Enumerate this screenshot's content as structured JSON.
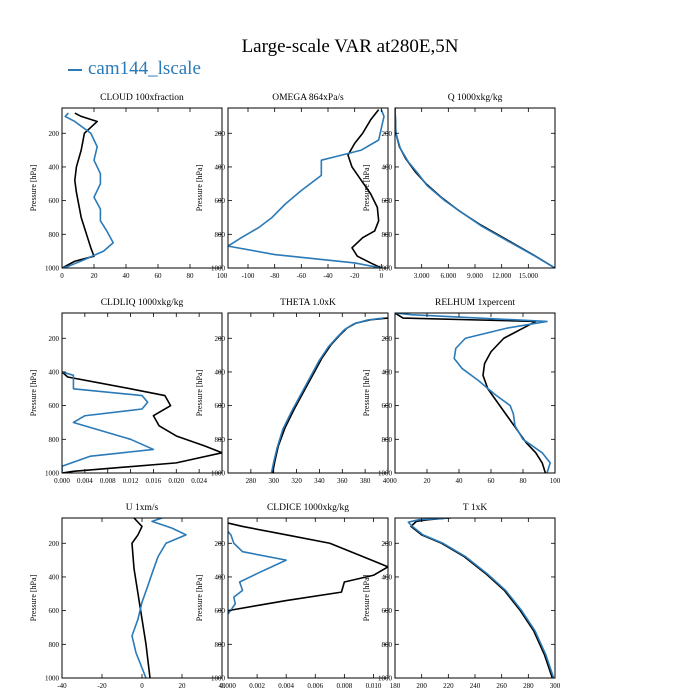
{
  "figure": {
    "title": "Large-scale VAR at280E,5N",
    "legend_label": "cam144_lscale",
    "series_colors": {
      "reference": "#000000",
      "model": "#2a7ab8"
    }
  },
  "chart_data": [
    {
      "type": "line",
      "title": "CLOUD  100xfraction",
      "ylabel": "Pressure [hPa]",
      "xlim": [
        0,
        100
      ],
      "ylim": [
        1000,
        50
      ],
      "xticks": [
        0,
        20,
        40,
        60,
        80,
        100
      ],
      "xtick_labels": [
        "0",
        "20",
        "40",
        "60",
        "80",
        "100"
      ],
      "yticks": [
        200,
        400,
        600,
        800,
        1000
      ],
      "ytick_labels": [
        "200",
        "400",
        "600",
        "800",
        "1000"
      ],
      "series": [
        {
          "name": "reference",
          "color": "#000000",
          "x": [
            8,
            12,
            22,
            14,
            12,
            9,
            8,
            9,
            11,
            12,
            14,
            16,
            18,
            20,
            8,
            2,
            0
          ],
          "y": [
            80,
            100,
            130,
            200,
            300,
            400,
            480,
            550,
            650,
            700,
            760,
            820,
            880,
            930,
            960,
            990,
            1000
          ]
        },
        {
          "name": "model",
          "color": "#2a7ab8",
          "x": [
            4,
            2,
            8,
            18,
            22,
            20,
            24,
            24,
            20,
            24,
            24,
            28,
            32,
            26,
            14,
            4,
            0
          ],
          "y": [
            80,
            100,
            130,
            200,
            280,
            360,
            440,
            500,
            580,
            650,
            720,
            780,
            850,
            900,
            950,
            990,
            1000
          ]
        }
      ]
    },
    {
      "type": "line",
      "title": "OMEGA  864xPa/s",
      "ylabel": "Pressure [hPa]",
      "xlim": [
        -115,
        5
      ],
      "ylim": [
        1000,
        50
      ],
      "xticks": [
        -100,
        -80,
        -60,
        -40,
        -20,
        0
      ],
      "xtick_labels": [
        "-100",
        "-80",
        "-60",
        "-40",
        "-20",
        "0"
      ],
      "yticks": [
        200,
        400,
        600,
        800,
        1000
      ],
      "ytick_labels": [
        "200",
        "400",
        "600",
        "800",
        "1000"
      ],
      "series": [
        {
          "name": "reference",
          "color": "#000000",
          "x": [
            -2,
            -8,
            -14,
            -20,
            -25,
            -22,
            -15,
            -8,
            -3,
            -2,
            -5,
            -14,
            -22,
            -18,
            -8,
            0
          ],
          "y": [
            60,
            120,
            200,
            260,
            330,
            400,
            480,
            560,
            640,
            720,
            780,
            820,
            880,
            930,
            970,
            1000
          ]
        },
        {
          "name": "model",
          "color": "#2a7ab8",
          "x": [
            0,
            2,
            -2,
            -15,
            -35,
            -45,
            -45,
            -60,
            -72,
            -82,
            -92,
            -105,
            -115,
            -80,
            -20,
            0
          ],
          "y": [
            60,
            100,
            240,
            300,
            340,
            360,
            450,
            540,
            620,
            700,
            760,
            820,
            870,
            920,
            970,
            1000
          ]
        }
      ]
    },
    {
      "type": "line",
      "title": "Q  1000xkg/kg",
      "ylabel": "Pressure [hPa]",
      "xlim": [
        0,
        18000
      ],
      "ylim": [
        1000,
        50
      ],
      "xticks": [
        3000,
        6000,
        9000,
        12000,
        15000
      ],
      "xtick_labels": [
        "3.000",
        "6.000",
        "9.000",
        "12.000",
        "15.000"
      ],
      "yticks": [
        200,
        400,
        600,
        800,
        1000
      ],
      "ytick_labels": [
        "200",
        "400",
        "600",
        "800",
        "1000"
      ],
      "series": [
        {
          "name": "reference",
          "color": "#000000",
          "x": [
            0,
            100,
            500,
            1200,
            2300,
            3500,
            5200,
            7200,
            9500,
            12500,
            15500,
            18000
          ],
          "y": [
            50,
            200,
            280,
            350,
            430,
            500,
            580,
            660,
            740,
            830,
            920,
            1000
          ]
        },
        {
          "name": "model",
          "color": "#2a7ab8",
          "x": [
            0,
            100,
            600,
            1500,
            2600,
            3600,
            5600,
            7500,
            9700,
            12700,
            15600,
            18000
          ],
          "y": [
            50,
            200,
            290,
            370,
            440,
            510,
            600,
            670,
            750,
            840,
            925,
            1000
          ]
        }
      ]
    },
    {
      "type": "line",
      "title": "CLDLIQ  1000xkg/kg",
      "ylabel": "Pressure [hPa]",
      "xlim": [
        0,
        0.028
      ],
      "ylim": [
        1000,
        50
      ],
      "xticks": [
        0,
        0.004,
        0.008,
        0.012,
        0.016,
        0.02,
        0.024
      ],
      "xtick_labels": [
        "0.000",
        "0.004",
        "0.008",
        "0.012",
        "0.016",
        "0.020",
        "0.024"
      ],
      "yticks": [
        200,
        400,
        600,
        800,
        1000
      ],
      "ytick_labels": [
        "200",
        "400",
        "600",
        "800",
        "1000"
      ],
      "series": [
        {
          "name": "reference",
          "color": "#000000",
          "x": [
            0,
            0.001,
            0.012,
            0.018,
            0.019,
            0.016,
            0.017,
            0.02,
            0.025,
            0.028,
            0.02,
            0.002,
            0
          ],
          "y": [
            400,
            430,
            500,
            540,
            600,
            660,
            720,
            780,
            840,
            880,
            940,
            990,
            1000
          ]
        },
        {
          "name": "model",
          "color": "#2a7ab8",
          "x": [
            0,
            0.002,
            0.002,
            0.014,
            0.015,
            0.014,
            0.004,
            0.002,
            0.012,
            0.016,
            0.005,
            0,
            0
          ],
          "y": [
            400,
            420,
            500,
            540,
            580,
            620,
            660,
            700,
            800,
            860,
            900,
            960,
            1000
          ]
        }
      ]
    },
    {
      "type": "line",
      "title": "THETA  1.0xK",
      "ylabel": "Pressure [hPa]",
      "xlim": [
        260,
        400
      ],
      "ylim": [
        1000,
        50
      ],
      "xticks": [
        280,
        300,
        320,
        340,
        360,
        380,
        400
      ],
      "xtick_labels": [
        "280",
        "300",
        "320",
        "340",
        "360",
        "380",
        "400"
      ],
      "yticks": [
        200,
        400,
        600,
        800,
        1000
      ],
      "ytick_labels": [
        "200",
        "400",
        "600",
        "800",
        "1000"
      ],
      "series": [
        {
          "name": "reference",
          "color": "#000000",
          "x": [
            400,
            385,
            372,
            364,
            358,
            350,
            342,
            334,
            326,
            318,
            310,
            304,
            301,
            299
          ],
          "y": [
            80,
            90,
            110,
            140,
            180,
            240,
            320,
            420,
            520,
            620,
            730,
            840,
            930,
            1000
          ]
        },
        {
          "name": "model",
          "color": "#2a7ab8",
          "x": [
            396,
            382,
            370,
            362,
            356,
            348,
            340,
            332,
            324,
            316,
            308,
            303,
            300,
            298
          ],
          "y": [
            80,
            92,
            115,
            148,
            190,
            250,
            330,
            430,
            530,
            630,
            740,
            850,
            935,
            1000
          ]
        }
      ]
    },
    {
      "type": "line",
      "title": "RELHUM  1xpercent",
      "ylabel": "Pressure [hPa]",
      "xlim": [
        0,
        100
      ],
      "ylim": [
        1000,
        50
      ],
      "xticks": [
        0,
        20,
        40,
        60,
        80,
        100
      ],
      "xtick_labels": [
        "0",
        "20",
        "40",
        "60",
        "80",
        "100"
      ],
      "yticks": [
        200,
        400,
        600,
        800,
        1000
      ],
      "ytick_labels": [
        "200",
        "400",
        "600",
        "800",
        "1000"
      ],
      "series": [
        {
          "name": "reference",
          "color": "#000000",
          "x": [
            0,
            5,
            88,
            80,
            68,
            60,
            56,
            55,
            58,
            64,
            70,
            76,
            82,
            88,
            92,
            94
          ],
          "y": [
            50,
            80,
            100,
            140,
            200,
            280,
            350,
            420,
            500,
            580,
            660,
            740,
            820,
            880,
            940,
            1000
          ]
        },
        {
          "name": "model",
          "color": "#2a7ab8",
          "x": [
            0,
            10,
            95,
            70,
            44,
            38,
            37,
            42,
            52,
            62,
            72,
            74,
            75,
            80,
            92,
            97,
            95
          ],
          "y": [
            50,
            60,
            100,
            140,
            200,
            260,
            320,
            380,
            450,
            530,
            600,
            650,
            720,
            800,
            880,
            940,
            1000
          ]
        }
      ]
    },
    {
      "type": "line",
      "title": "U  1xm/s",
      "ylabel": "Pressure [hPa]",
      "xlim": [
        -40,
        40
      ],
      "ylim": [
        1000,
        50
      ],
      "xticks": [
        -40,
        -20,
        0,
        20,
        40
      ],
      "xtick_labels": [
        "-40",
        "-20",
        "0",
        "20",
        "40"
      ],
      "yticks": [
        200,
        400,
        600,
        800,
        1000
      ],
      "ytick_labels": [
        "200",
        "400",
        "600",
        "800",
        "1000"
      ],
      "series": [
        {
          "name": "reference",
          "color": "#000000",
          "x": [
            -4,
            0,
            -2,
            -5,
            -4,
            -2,
            0,
            2,
            3,
            4
          ],
          "y": [
            50,
            100,
            150,
            200,
            350,
            500,
            650,
            800,
            900,
            1000
          ]
        },
        {
          "name": "model",
          "color": "#2a7ab8",
          "x": [
            10,
            5,
            15,
            22,
            12,
            8,
            5,
            3,
            0,
            -2,
            -5,
            -3,
            2
          ],
          "y": [
            50,
            70,
            110,
            150,
            200,
            280,
            380,
            450,
            550,
            650,
            750,
            850,
            1000
          ]
        }
      ]
    },
    {
      "type": "line",
      "title": "CLDICE  1000xkg/kg",
      "ylabel": "Pressure [hPa]",
      "xlim": [
        0,
        0.011
      ],
      "ylim": [
        1000,
        50
      ],
      "xticks": [
        0,
        0.002,
        0.004,
        0.006,
        0.008,
        0.01
      ],
      "xtick_labels": [
        "0.000",
        "0.002",
        "0.004",
        "0.006",
        "0.008",
        "0.010"
      ],
      "yticks": [
        200,
        400,
        600,
        800,
        1000
      ],
      "ytick_labels": [
        "200",
        "400",
        "600",
        "800",
        "1000"
      ],
      "series": [
        {
          "name": "reference",
          "color": "#000000",
          "x": [
            0,
            0.001,
            0.004,
            0.007,
            0.009,
            0.011,
            0.01,
            0.008,
            0.0078,
            0.004,
            0.002,
            0,
            0
          ],
          "y": [
            80,
            100,
            150,
            200,
            270,
            340,
            390,
            430,
            490,
            540,
            570,
            600,
            620
          ]
        },
        {
          "name": "model",
          "color": "#2a7ab8",
          "x": [
            0,
            0.0002,
            0.0004,
            0.001,
            0.004,
            0.002,
            0.0008,
            0.001,
            0.0004,
            0.0005,
            0
          ],
          "y": [
            130,
            150,
            200,
            250,
            300,
            380,
            430,
            480,
            520,
            560,
            620
          ]
        }
      ]
    },
    {
      "type": "line",
      "title": "T  1xK",
      "ylabel": "Pressure [hPa]",
      "xlim": [
        180,
        300
      ],
      "ylim": [
        1000,
        50
      ],
      "xticks": [
        180,
        200,
        220,
        240,
        260,
        280,
        300
      ],
      "xtick_labels": [
        "180",
        "200",
        "220",
        "240",
        "260",
        "280",
        "300"
      ],
      "yticks": [
        200,
        400,
        600,
        800,
        1000
      ],
      "ytick_labels": [
        "200",
        "400",
        "600",
        "800",
        "1000"
      ],
      "series": [
        {
          "name": "reference",
          "color": "#000000",
          "x": [
            220,
            205,
            196,
            192,
            200,
            215,
            232,
            248,
            262,
            274,
            284,
            292,
            298
          ],
          "y": [
            50,
            60,
            70,
            100,
            150,
            200,
            280,
            380,
            480,
            600,
            720,
            860,
            1000
          ]
        },
        {
          "name": "model",
          "color": "#2a7ab8",
          "x": [
            222,
            198,
            190,
            193,
            201,
            216,
            233,
            249,
            263,
            275,
            285,
            293,
            299
          ],
          "y": [
            50,
            60,
            75,
            100,
            150,
            200,
            280,
            380,
            480,
            600,
            720,
            860,
            1000
          ]
        }
      ]
    }
  ]
}
